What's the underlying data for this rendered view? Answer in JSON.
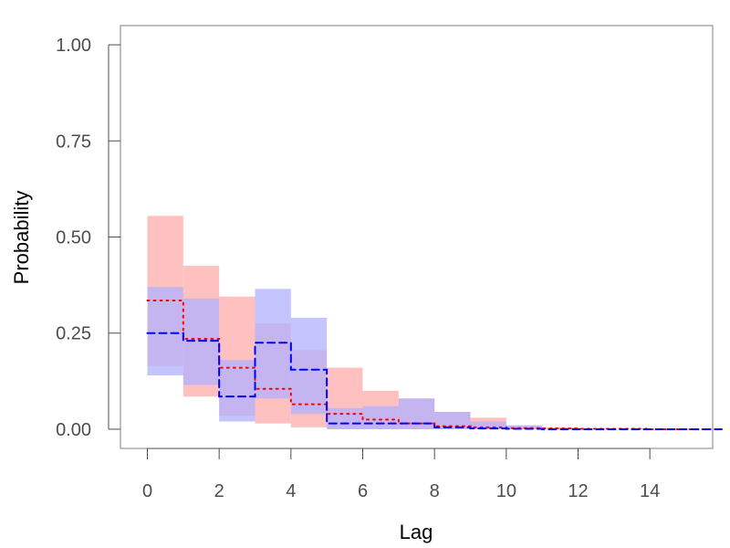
{
  "chart_data": {
    "type": "area",
    "xlabel": "Lag",
    "ylabel": "Probability",
    "xlim": [
      -0.75,
      15.75
    ],
    "ylim": [
      -0.05,
      1.05
    ],
    "x_ticks": [
      0,
      2,
      4,
      6,
      8,
      10,
      12,
      14
    ],
    "y_ticks": [
      0,
      0.25,
      0.5,
      0.75,
      1.0
    ],
    "x_tick_labels": [
      "0",
      "2",
      "4",
      "6",
      "8",
      "10",
      "12",
      "14"
    ],
    "y_tick_labels": [
      "0.00",
      "0.25",
      "0.50",
      "0.75",
      "1.00"
    ],
    "grid": false,
    "lags": [
      0,
      1,
      2,
      3,
      4,
      5,
      6,
      7,
      8,
      9,
      10,
      11,
      12,
      13,
      14,
      15
    ],
    "series": [
      {
        "color": "#ff0000",
        "band_color": "#ffc0c0",
        "line_style": "dotted",
        "estimate": [
          0.335,
          0.235,
          0.16,
          0.105,
          0.065,
          0.04,
          0.025,
          0.015,
          0.008,
          0.005,
          0.003,
          0.002,
          0.001,
          0.001,
          0.0,
          0.0
        ],
        "lower": [
          0.165,
          0.085,
          0.035,
          0.015,
          0.005,
          0.0,
          0.0,
          0.0,
          0.0,
          0.0,
          0.0,
          0.0,
          0.0,
          0.0,
          0.0,
          0.0
        ],
        "upper": [
          0.555,
          0.425,
          0.345,
          0.275,
          0.205,
          0.16,
          0.1,
          0.08,
          0.045,
          0.03,
          0.01,
          0.005,
          0.002,
          0.001,
          0.0,
          0.0
        ]
      },
      {
        "color": "#0000ff",
        "band_color": "#b0b0ff",
        "line_style": "dashed",
        "estimate": [
          0.25,
          0.23,
          0.085,
          0.225,
          0.155,
          0.015,
          0.015,
          0.015,
          0.005,
          0.002,
          0.001,
          0.0,
          0.0,
          0.0,
          0.0,
          0.0
        ],
        "lower": [
          0.14,
          0.115,
          0.02,
          0.08,
          0.04,
          0.0,
          0.0,
          0.0,
          0.0,
          0.0,
          0.0,
          0.0,
          0.0,
          0.0,
          0.0,
          0.0
        ],
        "upper": [
          0.37,
          0.34,
          0.18,
          0.365,
          0.29,
          0.055,
          0.06,
          0.08,
          0.045,
          0.02,
          0.01,
          0.0,
          0.0,
          0.0,
          0.0,
          0.0
        ]
      }
    ]
  }
}
